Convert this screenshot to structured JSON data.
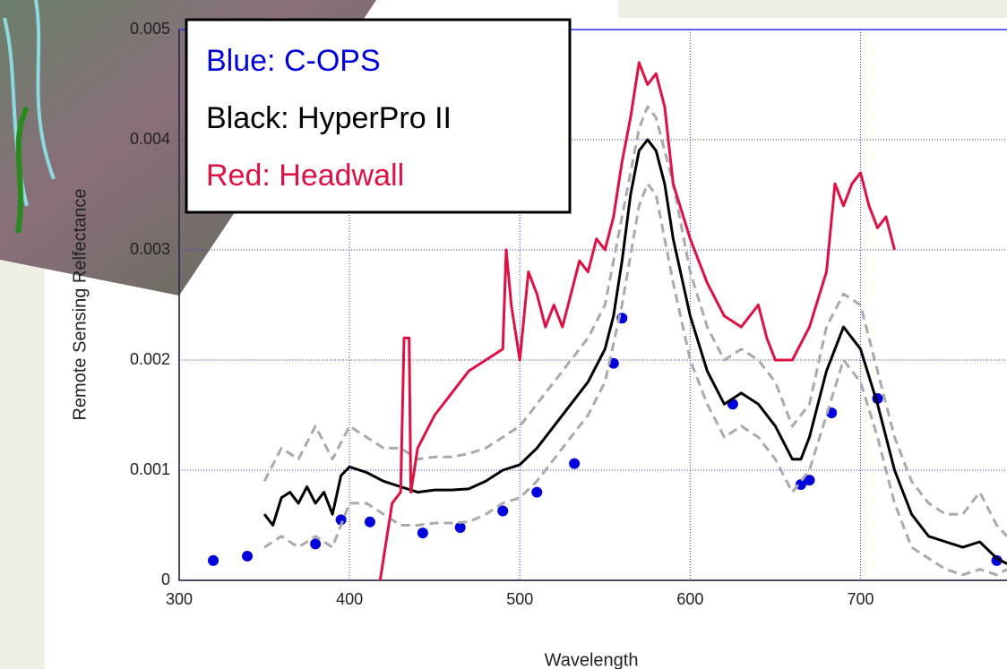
{
  "chart_data": {
    "type": "line",
    "y_label": "Remote Sensing Relfectance",
    "x_label": "Wavelength",
    "xlim": [
      300,
      786
    ],
    "ylim": [
      0,
      0.005
    ],
    "xticks": [
      300,
      400,
      500,
      600,
      700
    ],
    "yticks": [
      0,
      0.001,
      0.002,
      0.003,
      0.004,
      0.005
    ],
    "grid": true,
    "legend": "top-left",
    "series": [
      {
        "name": "Blue: C-OPS",
        "color": "#0000dd",
        "style": "markers",
        "x": [
          320,
          340,
          380,
          395,
          412,
          443,
          465,
          490,
          510,
          532,
          555,
          560,
          625,
          665,
          670,
          683,
          710,
          780
        ],
        "values": [
          0.00018,
          0.00022,
          0.00033,
          0.00055,
          0.00053,
          0.00043,
          0.00048,
          0.00063,
          0.0008,
          0.00106,
          0.00197,
          0.00238,
          0.0016,
          0.00087,
          0.00091,
          0.00152,
          0.00165,
          0.00018
        ]
      },
      {
        "name": "Black: HyperPro II",
        "color": "#000000",
        "style": "solid",
        "x": [
          350,
          355,
          360,
          365,
          370,
          375,
          380,
          385,
          390,
          395,
          400,
          410,
          420,
          430,
          440,
          450,
          460,
          470,
          480,
          490,
          500,
          510,
          520,
          530,
          540,
          550,
          555,
          560,
          565,
          570,
          575,
          580,
          585,
          590,
          600,
          610,
          620,
          630,
          640,
          650,
          660,
          665,
          670,
          680,
          690,
          700,
          710,
          720,
          730,
          740,
          750,
          760,
          770,
          780,
          786
        ],
        "values": [
          0.0006,
          0.0005,
          0.00075,
          0.0008,
          0.0007,
          0.00085,
          0.0007,
          0.0008,
          0.0006,
          0.00095,
          0.00103,
          0.00098,
          0.0009,
          0.00085,
          0.0008,
          0.00082,
          0.00082,
          0.00083,
          0.0009,
          0.001,
          0.00105,
          0.0012,
          0.0014,
          0.0016,
          0.0018,
          0.0021,
          0.0024,
          0.0029,
          0.0035,
          0.0039,
          0.004,
          0.0039,
          0.0036,
          0.0031,
          0.0024,
          0.0019,
          0.0016,
          0.0017,
          0.0016,
          0.0014,
          0.0011,
          0.0011,
          0.0013,
          0.0019,
          0.0023,
          0.0021,
          0.0016,
          0.001,
          0.0006,
          0.0004,
          0.00035,
          0.0003,
          0.00035,
          0.0002,
          0.00015
        ]
      },
      {
        "color": "#aaaaaa",
        "style": "dashed",
        "x": [
          350,
          360,
          370,
          380,
          390,
          400,
          410,
          420,
          430,
          440,
          450,
          460,
          470,
          480,
          490,
          500,
          510,
          520,
          530,
          540,
          550,
          560,
          570,
          575,
          580,
          590,
          600,
          610,
          620,
          630,
          640,
          650,
          660,
          670,
          680,
          690,
          700,
          710,
          720,
          730,
          740,
          750,
          760,
          770,
          780,
          786
        ],
        "values": [
          0.0009,
          0.0012,
          0.0011,
          0.0014,
          0.0011,
          0.0014,
          0.0013,
          0.0012,
          0.0012,
          0.0011,
          0.00112,
          0.00112,
          0.00115,
          0.0012,
          0.0013,
          0.0014,
          0.0016,
          0.0018,
          0.002,
          0.0022,
          0.0025,
          0.0033,
          0.0041,
          0.0043,
          0.0042,
          0.0036,
          0.0028,
          0.0023,
          0.002,
          0.0021,
          0.002,
          0.0018,
          0.0014,
          0.0016,
          0.0023,
          0.0026,
          0.0025,
          0.0019,
          0.0013,
          0.0009,
          0.0007,
          0.0006,
          0.0006,
          0.0008,
          0.0005,
          0.0004
        ]
      },
      {
        "color": "#aaaaaa",
        "style": "dashed",
        "x": [
          350,
          360,
          370,
          380,
          390,
          400,
          410,
          420,
          430,
          440,
          450,
          460,
          470,
          480,
          490,
          500,
          510,
          520,
          530,
          540,
          550,
          560,
          570,
          575,
          580,
          590,
          600,
          610,
          620,
          630,
          640,
          650,
          660,
          670,
          680,
          690,
          700,
          710,
          720,
          730,
          740,
          750,
          760,
          770,
          780,
          786
        ],
        "values": [
          0.0003,
          0.0004,
          0.0003,
          0.0004,
          0.0003,
          0.0007,
          0.0007,
          0.0006,
          0.0005,
          0.0005,
          0.00052,
          0.00052,
          0.00053,
          0.0006,
          0.0007,
          0.00075,
          0.0009,
          0.0011,
          0.0013,
          0.0015,
          0.0018,
          0.0025,
          0.0034,
          0.0036,
          0.0035,
          0.0027,
          0.002,
          0.0016,
          0.0013,
          0.0014,
          0.0013,
          0.0011,
          0.0008,
          0.001,
          0.0015,
          0.002,
          0.0018,
          0.0013,
          0.0007,
          0.0003,
          0.0002,
          0.0001,
          5e-05,
          0.0001,
          5e-05,
          0.0001
        ]
      },
      {
        "name": "Red: Headwall",
        "color": "#dd1144",
        "style": "solid",
        "x": [
          418,
          425,
          430,
          432,
          435,
          436,
          440,
          450,
          460,
          470,
          480,
          490,
          492,
          495,
          500,
          505,
          510,
          515,
          520,
          525,
          530,
          535,
          540,
          545,
          550,
          555,
          560,
          565,
          570,
          575,
          580,
          585,
          590,
          600,
          610,
          620,
          630,
          640,
          645,
          650,
          655,
          660,
          670,
          680,
          685,
          690,
          695,
          700,
          705,
          710,
          715,
          720
        ],
        "values": [
          0,
          0.0007,
          0.0008,
          0.0022,
          0.0022,
          0.0008,
          0.0012,
          0.0015,
          0.0017,
          0.0019,
          0.002,
          0.0021,
          0.003,
          0.0025,
          0.002,
          0.0028,
          0.0026,
          0.0023,
          0.0025,
          0.0023,
          0.0026,
          0.0029,
          0.0028,
          0.0031,
          0.003,
          0.0033,
          0.0038,
          0.0042,
          0.0047,
          0.0045,
          0.0046,
          0.0043,
          0.0036,
          0.0031,
          0.0027,
          0.0024,
          0.0023,
          0.0025,
          0.0022,
          0.002,
          0.002,
          0.002,
          0.0023,
          0.0028,
          0.0036,
          0.0034,
          0.0036,
          0.0037,
          0.0034,
          0.0032,
          0.0033,
          0.003
        ]
      }
    ]
  }
}
